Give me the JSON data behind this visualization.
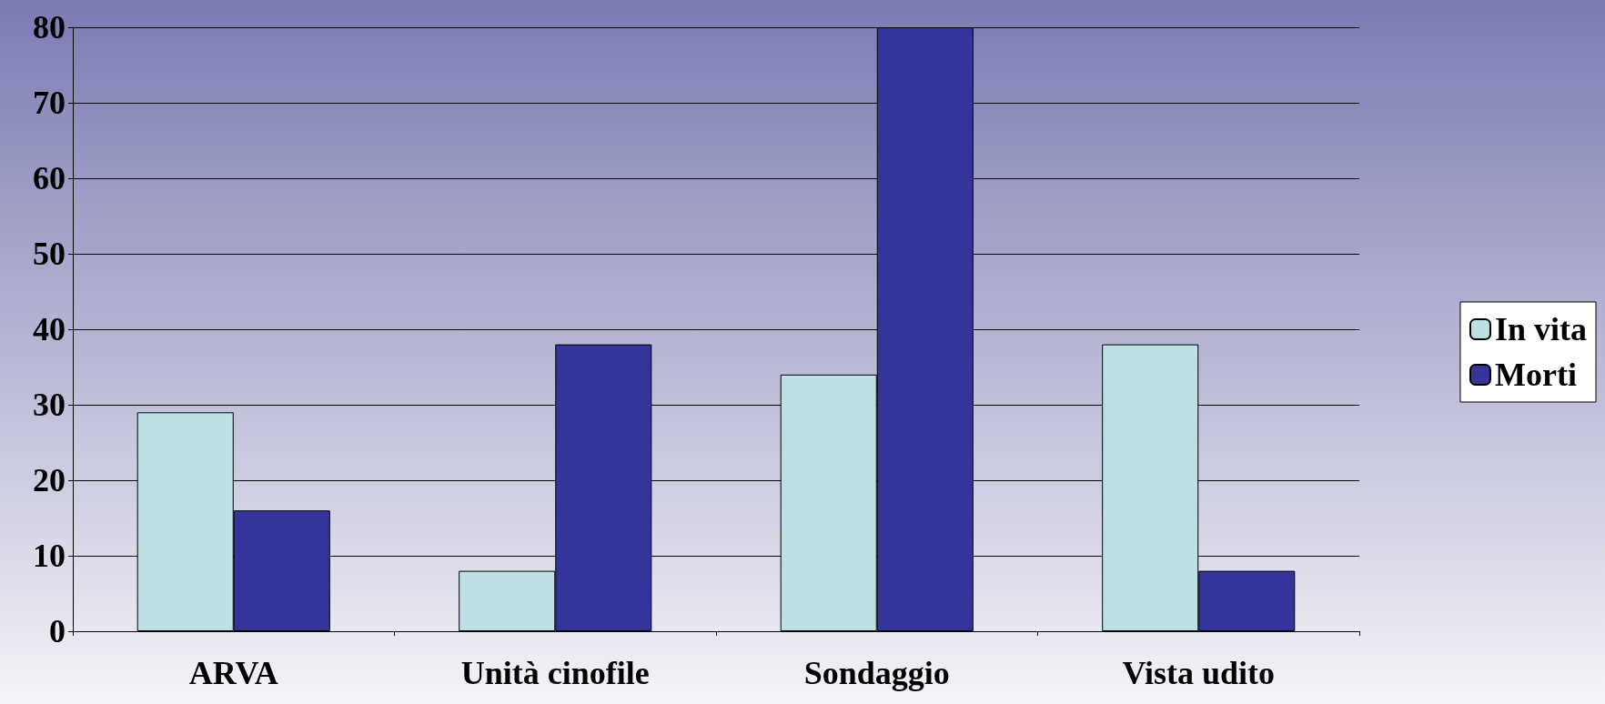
{
  "chart_data": {
    "type": "bar",
    "categories": [
      "ARVA",
      "Unità cinofile",
      "Sondaggio",
      "Vista udito"
    ],
    "series": [
      {
        "name": "In vita",
        "color": "#bde0e5",
        "values": [
          29,
          8,
          34,
          38
        ]
      },
      {
        "name": "Morti",
        "color": "#35349a",
        "values": [
          16,
          38,
          80,
          8
        ]
      }
    ],
    "ylim": [
      0,
      80
    ],
    "yticks": [
      0,
      10,
      20,
      30,
      40,
      50,
      60,
      70,
      80
    ],
    "grid": "y",
    "legend": "right"
  }
}
